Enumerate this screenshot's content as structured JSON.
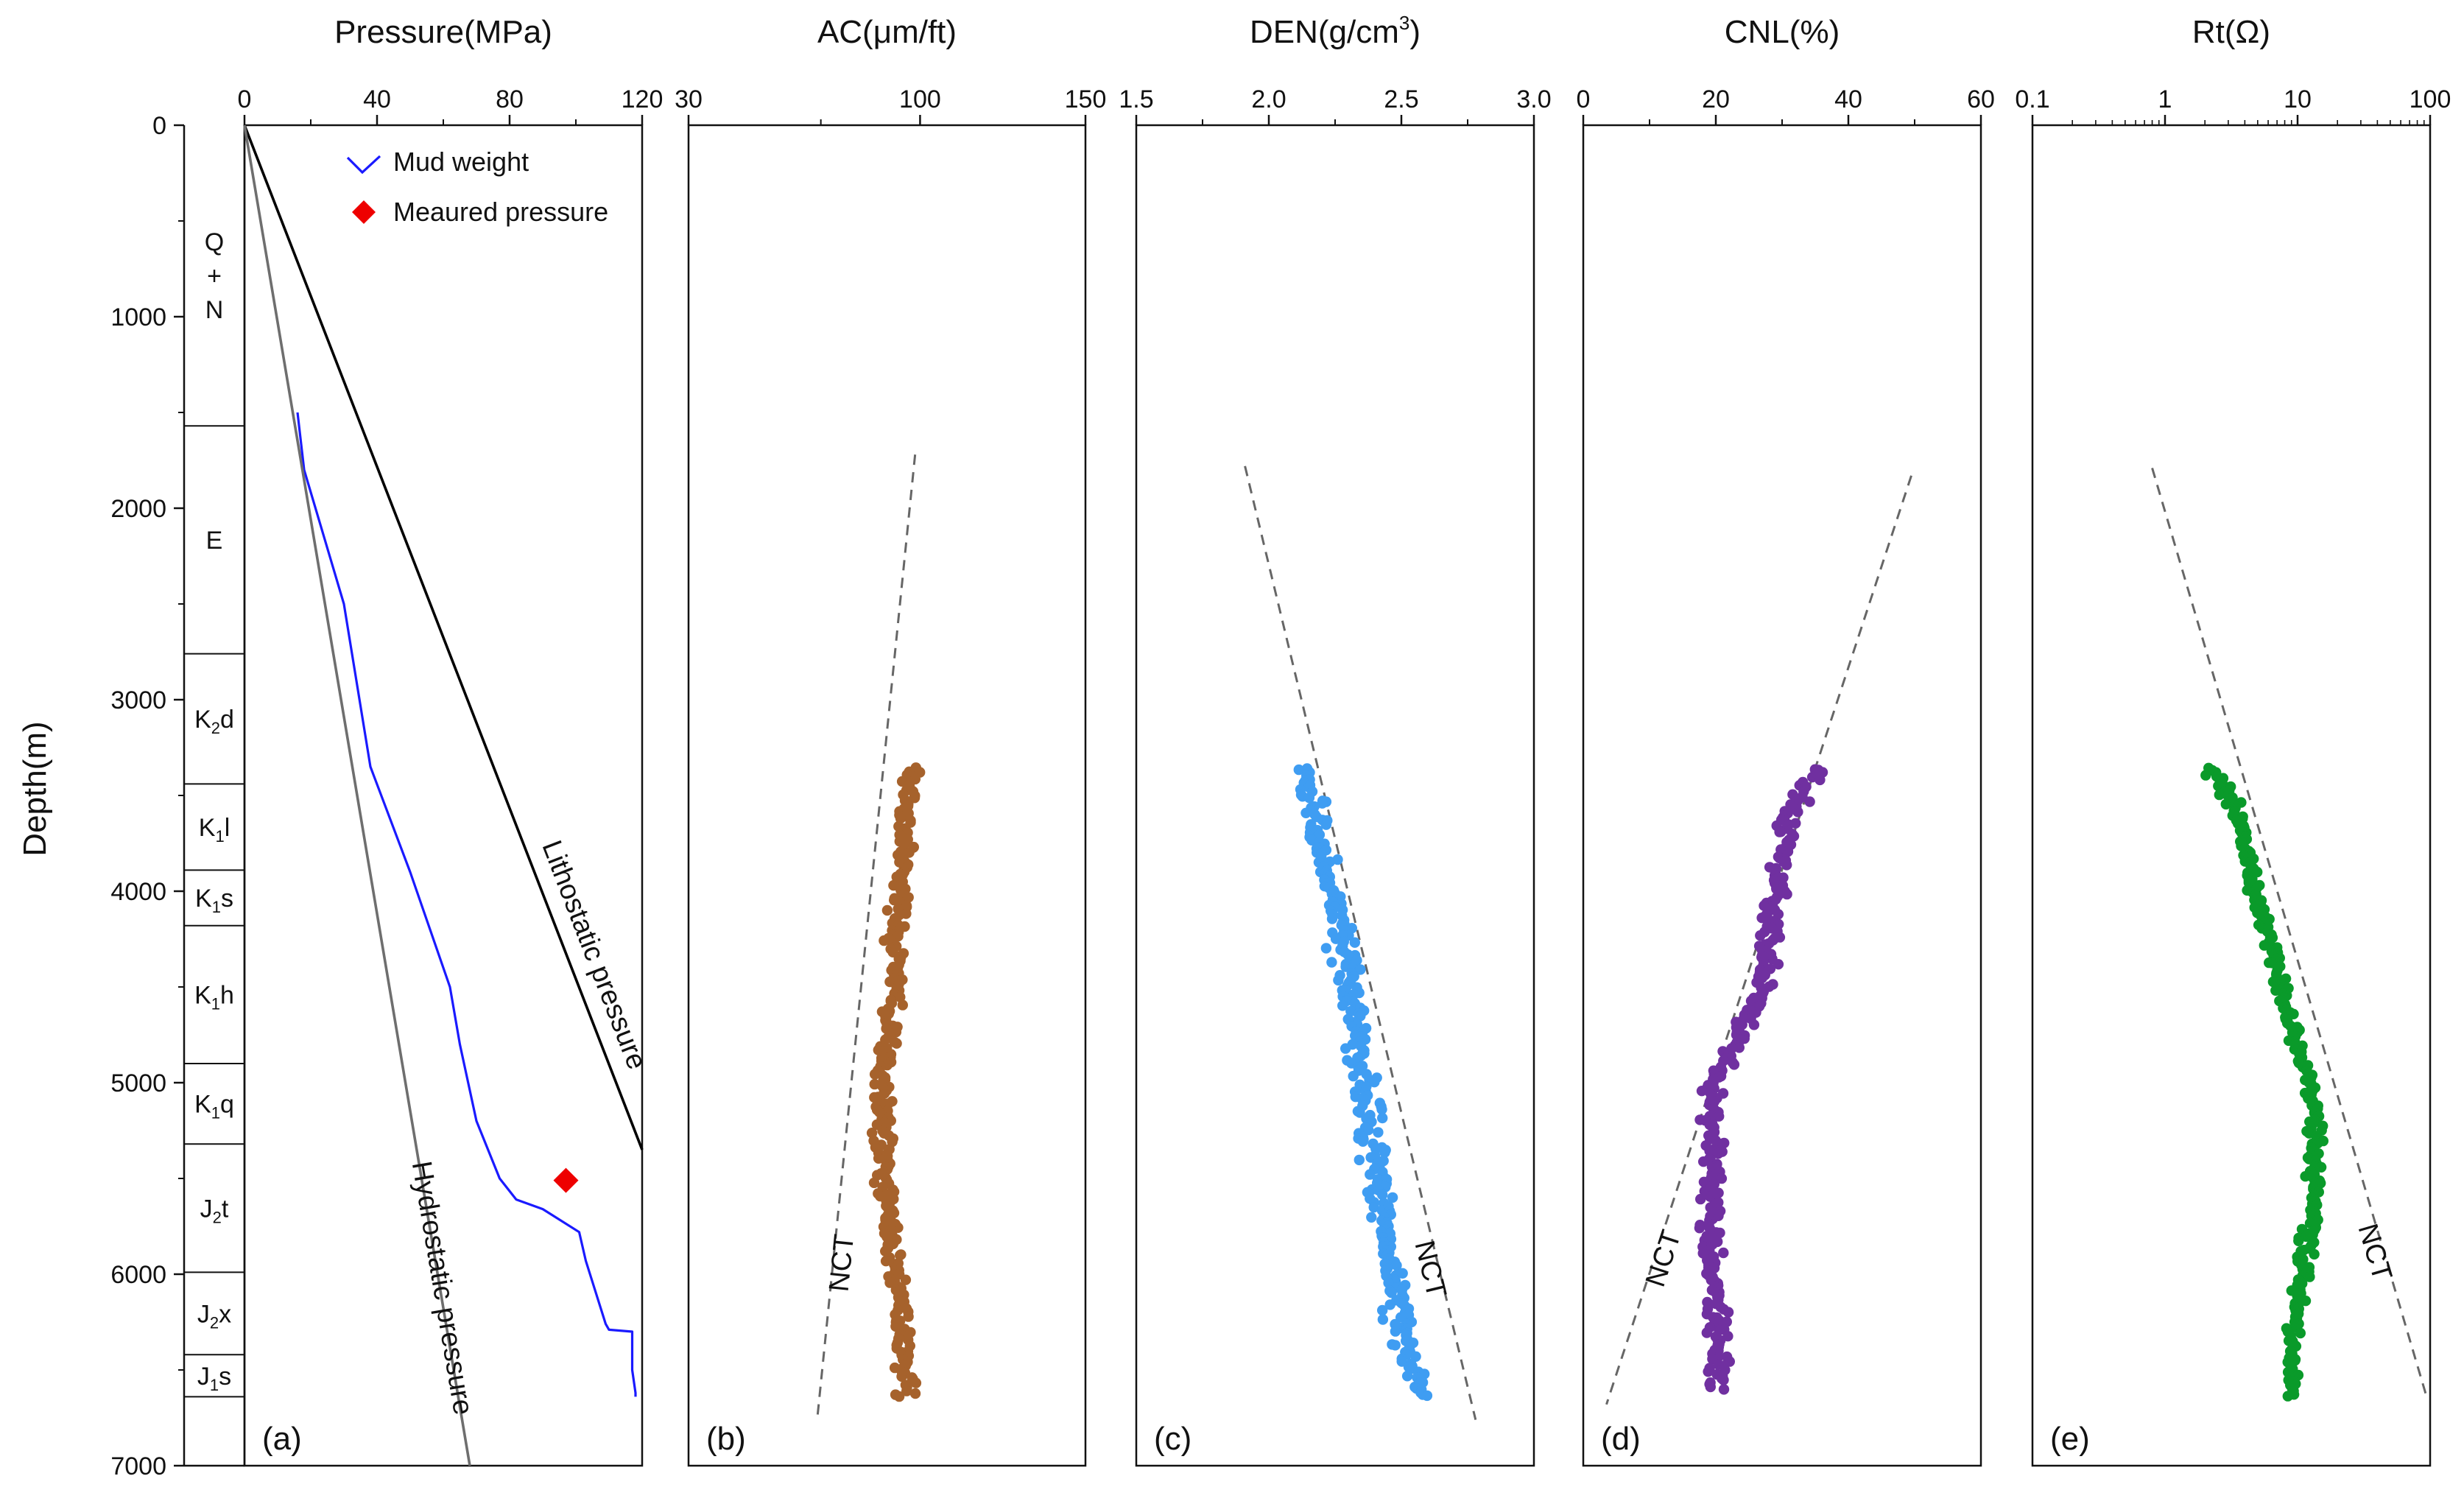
{
  "figure": {
    "y_axis_label": "Depth(m)",
    "depth_ticks": [
      0,
      1000,
      2000,
      3000,
      4000,
      5000,
      6000,
      7000
    ],
    "depth_range": [
      0,
      7000
    ]
  },
  "stratigraphy": {
    "units": [
      {
        "top": 0,
        "base": 1570,
        "lines": [
          "Q",
          "+",
          "N"
        ]
      },
      {
        "top": 1570,
        "base": 2760,
        "lines": [
          "E"
        ]
      },
      {
        "top": 2760,
        "base": 3440,
        "main": "K",
        "sub": "2",
        "rest": "d"
      },
      {
        "top": 3440,
        "base": 3890,
        "main": "K",
        "sub": "1",
        "rest": "l"
      },
      {
        "top": 3890,
        "base": 4180,
        "main": "K",
        "sub": "1",
        "rest": "s"
      },
      {
        "top": 4180,
        "base": 4900,
        "main": "K",
        "sub": "1",
        "rest": "h"
      },
      {
        "top": 4900,
        "base": 5320,
        "main": "K",
        "sub": "1",
        "rest": "q"
      },
      {
        "top": 5320,
        "base": 5990,
        "main": "J",
        "sub": "2",
        "rest": "t"
      },
      {
        "top": 5990,
        "base": 6420,
        "main": "J",
        "sub": "2",
        "rest": "x"
      },
      {
        "top": 6420,
        "base": 6640,
        "main": "J",
        "sub": "1",
        "rest": "s"
      }
    ]
  },
  "chart_data": [
    {
      "id": "a",
      "type": "line",
      "title": "Pressure(MPa)",
      "panel_label": "(a)",
      "x_scale": "linear",
      "xlim": [
        0,
        120
      ],
      "x_ticks": [
        0,
        40,
        80,
        120
      ],
      "x_minor": [
        20,
        60,
        100
      ],
      "ylim": [
        0,
        7000
      ],
      "series": [
        {
          "name": "Mud weight",
          "color": "#1a1aff",
          "x": [
            16,
            18,
            30,
            38,
            50,
            62,
            65,
            70,
            77,
            82,
            90,
            101,
            103,
            109,
            110,
            117,
            117,
            118,
            118
          ],
          "y": [
            1500,
            1800,
            2500,
            3350,
            3900,
            4500,
            4800,
            5200,
            5500,
            5610,
            5660,
            5780,
            5930,
            6260,
            6290,
            6300,
            6500,
            6620,
            6640
          ]
        },
        {
          "name": "Lithostatic pressure",
          "color": "#000000",
          "x": [
            0,
            120
          ],
          "y": [
            0,
            5350
          ]
        },
        {
          "name": "Hydrostatic pressure",
          "color": "#6e6e6e",
          "x": [
            0,
            68
          ],
          "y": [
            0,
            7000
          ]
        }
      ],
      "points": [
        {
          "name": "Meaured pressure",
          "color": "#ee0000",
          "x": [
            97
          ],
          "y": [
            5510
          ]
        }
      ],
      "annotations": [
        "Lithostatic pressure",
        "Hydrostatic pressure"
      ],
      "legend": [
        "Mud weight",
        "Meaured pressure"
      ]
    },
    {
      "id": "b",
      "type": "scatter",
      "title": "AC(μm/ft)",
      "panel_label": "(b)",
      "x_scale": "linear",
      "xlim": [
        30,
        150
      ],
      "x_ticks": [
        30,
        100,
        150
      ],
      "x_tick_labels": [
        "30",
        "100",
        "150"
      ],
      "x_minor": [
        70
      ],
      "ylim": [
        0,
        7000
      ],
      "color": "#a6622c",
      "depth_range": [
        3360,
        6640
      ],
      "profile": {
        "depth": [
          3360,
          3500,
          3800,
          4100,
          4500,
          4800,
          5000,
          5150,
          5400,
          5700,
          5900,
          6100,
          6300,
          6640
        ],
        "value": [
          97,
          96.5,
          95,
          93,
          92,
          90,
          88,
          89,
          89,
          90,
          92,
          94,
          95,
          96
        ]
      },
      "jitter": 1.6,
      "nct": {
        "x": [
          98.5,
          69
        ],
        "y": [
          1720,
          6740
        ]
      },
      "nct_label": "NCT"
    },
    {
      "id": "c",
      "type": "scatter",
      "title_base": "DEN(g/cm",
      "title_sup": "3",
      "title_close": ")",
      "panel_label": "(c)",
      "x_scale": "linear",
      "xlim": [
        1.5,
        3.0
      ],
      "x_ticks": [
        1.5,
        2.0,
        2.5,
        3.0
      ],
      "x_tick_labels": [
        "1.5",
        "2.0",
        "2.5",
        "3.0"
      ],
      "x_minor": [
        1.75,
        2.25,
        2.75
      ],
      "ylim": [
        0,
        7000
      ],
      "color": "#3f9df2",
      "depth_range": [
        3360,
        6640
      ],
      "profile": {
        "depth": [
          3360,
          3600,
          4000,
          4500,
          5000,
          5500,
          6000,
          6300,
          6640
        ],
        "value": [
          2.13,
          2.17,
          2.24,
          2.3,
          2.36,
          2.41,
          2.47,
          2.5,
          2.58
        ]
      },
      "jitter": 0.025,
      "nct": {
        "x": [
          1.91,
          2.78
        ],
        "y": [
          1780,
          6760
        ]
      },
      "nct_label": "NCT"
    },
    {
      "id": "d",
      "type": "scatter",
      "title": "CNL(%)",
      "panel_label": "(d)",
      "x_scale": "linear",
      "xlim": [
        0,
        60
      ],
      "x_ticks": [
        0,
        20,
        40,
        60
      ],
      "x_tick_labels": [
        "0",
        "20",
        "40",
        "60"
      ],
      "x_minor": [
        10,
        30,
        50
      ],
      "ylim": [
        0,
        7000
      ],
      "color": "#7030a0",
      "depth_range": [
        3360,
        6600
      ],
      "profile": {
        "depth": [
          3360,
          3600,
          4000,
          4500,
          4800,
          5000,
          5500,
          5800,
          6100,
          6300,
          6600
        ],
        "value": [
          35,
          31,
          29,
          27,
          23,
          19.5,
          19.5,
          19,
          20,
          20.5,
          20.5
        ]
      },
      "jitter": 0.8,
      "nct": {
        "x": [
          49.5,
          3.5
        ],
        "y": [
          1830,
          6680
        ]
      },
      "nct_label": "NCT"
    },
    {
      "id": "e",
      "type": "scatter",
      "title": "Rt(Ω)",
      "panel_label": "(e)",
      "x_scale": "log",
      "xlim": [
        0.1,
        100
      ],
      "x_ticks": [
        0.1,
        1,
        10,
        100
      ],
      "x_tick_labels": [
        "0.1",
        "1",
        "10",
        "100"
      ],
      "ylim": [
        0,
        7000
      ],
      "color": "#0a9a2a",
      "depth_range": [
        3360,
        6640
      ],
      "profile": {
        "depth": [
          3360,
          3600,
          4000,
          4500,
          4800,
          5000,
          5200,
          5400,
          5700,
          5900,
          6200,
          6400,
          6640
        ],
        "value": [
          2.2,
          3.4,
          4.8,
          7.6,
          9.6,
          12.5,
          14,
          13.5,
          13,
          11.5,
          9.5,
          9,
          9
        ]
      },
      "jitter": 0.03,
      "nct": {
        "x": [
          0.8,
          95
        ],
        "y": [
          1790,
          6650
        ]
      },
      "nct_label": "NCT"
    }
  ]
}
